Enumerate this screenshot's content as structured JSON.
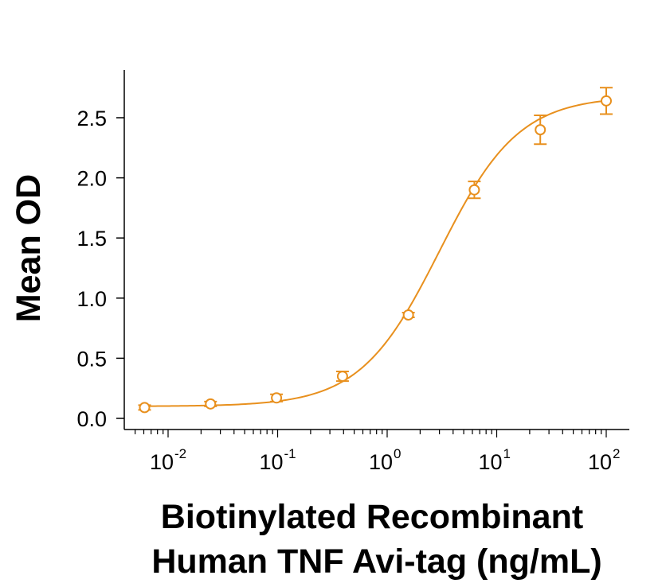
{
  "chart_data": {
    "type": "scatter",
    "xlabel_lines": [
      "Biotinylated Recombinant",
      "Human TNF Avi-tag (ng/mL)"
    ],
    "ylabel": "Mean OD",
    "x_scale": "log",
    "xlim": [
      0.0042,
      160
    ],
    "ylim": [
      0,
      2.8
    ],
    "x_ticks": [
      {
        "base": "10",
        "exp": "-2",
        "value": 0.01
      },
      {
        "base": "10",
        "exp": "-1",
        "value": 0.1
      },
      {
        "base": "10",
        "exp": "0",
        "value": 1
      },
      {
        "base": "10",
        "exp": "1",
        "value": 10
      },
      {
        "base": "10",
        "exp": "2",
        "value": 100
      }
    ],
    "y_ticks": [
      "0.0",
      "0.5",
      "1.0",
      "1.5",
      "2.0",
      "2.5"
    ],
    "series": [
      {
        "color": "#E8901E",
        "marker": "open-circle",
        "x": [
          0.0061,
          0.0244,
          0.0977,
          0.391,
          1.5625,
          6.25,
          25,
          100
        ],
        "y": [
          0.09,
          0.12,
          0.17,
          0.35,
          0.86,
          1.9,
          2.4,
          2.64
        ],
        "error": [
          0.02,
          0.02,
          0.03,
          0.04,
          0.02,
          0.07,
          0.12,
          0.11
        ]
      }
    ],
    "fit": {
      "model": "4PL",
      "bottom": 0.1,
      "top": 2.68,
      "ec50": 3.0,
      "hill": 1.2
    },
    "grid": false,
    "legend": "none"
  }
}
